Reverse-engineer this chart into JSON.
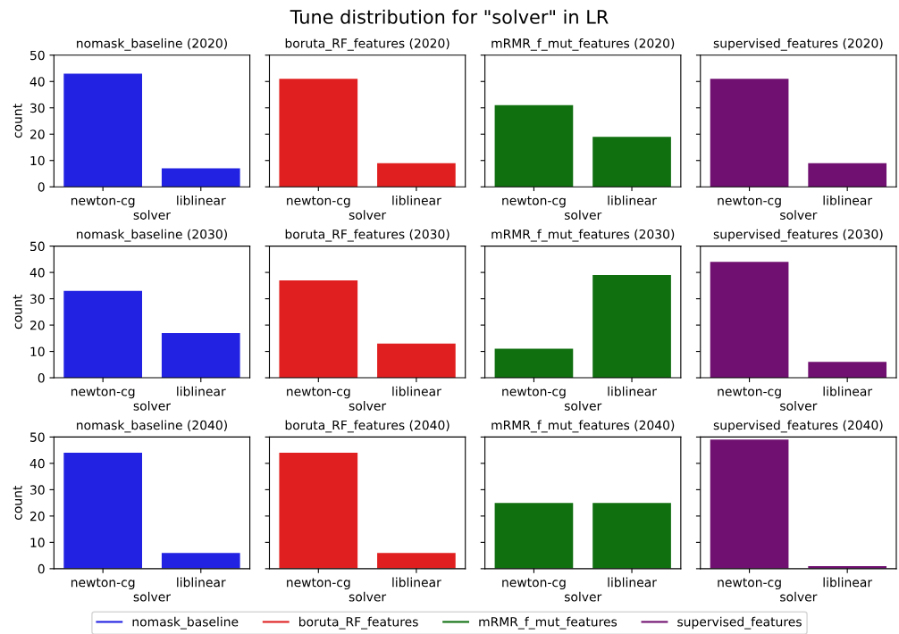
{
  "chart_data": [
    {
      "type": "bar",
      "title": "nomask_baseline (2020)",
      "annotations": [
        "Tune distribution for \"solver\" in LR"
      ],
      "categories": [
        "newton-cg",
        "liblinear"
      ],
      "series": [
        {
          "name": "nomask_baseline",
          "color": "#2222e2",
          "values": [
            43,
            7
          ]
        }
      ],
      "xlabel": "solver",
      "ylabel": "count",
      "ylim": [
        0,
        50
      ],
      "yticks": [
        0,
        10,
        20,
        30,
        40,
        50
      ],
      "legend": "bottom"
    },
    {
      "type": "bar",
      "title": "boruta_RF_features (2020)",
      "categories": [
        "newton-cg",
        "liblinear"
      ],
      "series": [
        {
          "name": "boruta_RF_features",
          "color": "#e02020",
          "values": [
            41,
            9
          ]
        }
      ],
      "xlabel": "solver",
      "ylim": [
        0,
        50
      ],
      "yticks": [
        0,
        10,
        20,
        30,
        40,
        50
      ],
      "tick_labels": "x",
      "legend": "bottom"
    },
    {
      "type": "bar",
      "title": "mRMR_f_mut_features (2020)",
      "categories": [
        "newton-cg",
        "liblinear"
      ],
      "series": [
        {
          "name": "mRMR_f_mut_features",
          "color": "#107010",
          "values": [
            31,
            19
          ]
        }
      ],
      "xlabel": "solver",
      "ylim": [
        0,
        50
      ],
      "yticks": [
        0,
        10,
        20,
        30,
        40,
        50
      ],
      "tick_labels": "x",
      "legend": "bottom"
    },
    {
      "type": "bar",
      "title": "supervised_features (2020)",
      "categories": [
        "newton-cg",
        "liblinear"
      ],
      "series": [
        {
          "name": "supervised_features",
          "color": "#701070",
          "values": [
            41,
            9
          ]
        }
      ],
      "xlabel": "solver",
      "ylim": [
        0,
        50
      ],
      "yticks": [
        0,
        10,
        20,
        30,
        40,
        50
      ],
      "tick_labels": "x",
      "legend": "bottom"
    },
    {
      "type": "bar",
      "title": "nomask_baseline (2030)",
      "categories": [
        "newton-cg",
        "liblinear"
      ],
      "series": [
        {
          "color": "#2222e2",
          "values": [
            33,
            17
          ]
        }
      ],
      "xlabel": "solver",
      "ylabel": "count",
      "ylim": [
        0,
        50
      ],
      "yticks": [
        0,
        10,
        20,
        30,
        40,
        50
      ]
    },
    {
      "type": "bar",
      "title": "boruta_RF_features (2030)",
      "categories": [
        "newton-cg",
        "liblinear"
      ],
      "series": [
        {
          "color": "#e02020",
          "values": [
            37,
            13
          ]
        }
      ],
      "xlabel": "solver",
      "ylim": [
        0,
        50
      ],
      "yticks": [
        0,
        10,
        20,
        30,
        40,
        50
      ],
      "tick_labels": "x"
    },
    {
      "type": "bar",
      "title": "mRMR_f_mut_features (2030)",
      "categories": [
        "newton-cg",
        "liblinear"
      ],
      "series": [
        {
          "color": "#107010",
          "values": [
            11,
            39
          ]
        }
      ],
      "xlabel": "solver",
      "ylim": [
        0,
        50
      ],
      "yticks": [
        0,
        10,
        20,
        30,
        40,
        50
      ],
      "tick_labels": "x"
    },
    {
      "type": "bar",
      "title": "supervised_features (2030)",
      "categories": [
        "newton-cg",
        "liblinear"
      ],
      "series": [
        {
          "color": "#701070",
          "values": [
            44,
            6
          ]
        }
      ],
      "xlabel": "solver",
      "ylim": [
        0,
        50
      ],
      "yticks": [
        0,
        10,
        20,
        30,
        40,
        50
      ],
      "tick_labels": "x"
    },
    {
      "type": "bar",
      "title": "nomask_baseline (2040)",
      "categories": [
        "newton-cg",
        "liblinear"
      ],
      "series": [
        {
          "color": "#2222e2",
          "values": [
            44,
            6
          ]
        }
      ],
      "xlabel": "solver",
      "ylabel": "count",
      "ylim": [
        0,
        50
      ],
      "yticks": [
        0,
        10,
        20,
        30,
        40,
        50
      ]
    },
    {
      "type": "bar",
      "title": "boruta_RF_features (2040)",
      "categories": [
        "newton-cg",
        "liblinear"
      ],
      "series": [
        {
          "color": "#e02020",
          "values": [
            44,
            6
          ]
        }
      ],
      "xlabel": "solver",
      "ylim": [
        0,
        50
      ],
      "yticks": [
        0,
        10,
        20,
        30,
        40,
        50
      ],
      "tick_labels": "x"
    },
    {
      "type": "bar",
      "title": "mRMR_f_mut_features (2040)",
      "categories": [
        "newton-cg",
        "liblinear"
      ],
      "series": [
        {
          "color": "#107010",
          "values": [
            25,
            25
          ]
        }
      ],
      "xlabel": "solver",
      "ylim": [
        0,
        50
      ],
      "yticks": [
        0,
        10,
        20,
        30,
        40,
        50
      ],
      "tick_labels": "x"
    },
    {
      "type": "bar",
      "title": "supervised_features (2040)",
      "categories": [
        "newton-cg",
        "liblinear"
      ],
      "series": [
        {
          "color": "#701070",
          "values": [
            49,
            1
          ]
        }
      ],
      "xlabel": "solver",
      "ylim": [
        0,
        50
      ],
      "yticks": [
        0,
        10,
        20,
        30,
        40,
        50
      ],
      "tick_labels": "x"
    }
  ]
}
